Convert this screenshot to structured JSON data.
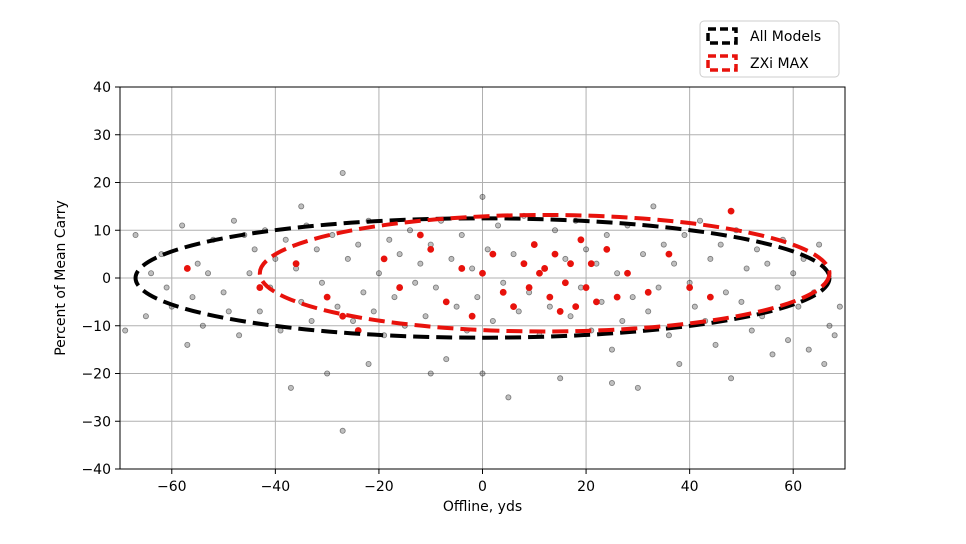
{
  "chart_data": {
    "type": "scatter",
    "xlabel": "Offline, yds",
    "ylabel": "Percent of Mean Carry",
    "xlim": [
      -70,
      70
    ],
    "ylim": [
      -40,
      40
    ],
    "xticks": [
      -60,
      -40,
      -20,
      0,
      20,
      40,
      60
    ],
    "yticks": [
      -40,
      -30,
      -20,
      -10,
      0,
      10,
      20,
      30,
      40
    ],
    "grid": true,
    "legend_position": "top-right, outside plot",
    "series": [
      {
        "name": "All Models",
        "color": "#000000",
        "marker_alpha": 0.25,
        "ellipse": {
          "cx": 0,
          "cy": 0,
          "rx": 67,
          "ry": 12.5
        },
        "points": [
          [
            -67,
            9
          ],
          [
            -65,
            -8
          ],
          [
            -62,
            5
          ],
          [
            -60,
            -6
          ],
          [
            -58,
            11
          ],
          [
            -57,
            -14
          ],
          [
            -55,
            3
          ],
          [
            -54,
            -10
          ],
          [
            -52,
            8
          ],
          [
            -50,
            -3
          ],
          [
            -48,
            12
          ],
          [
            -47,
            -12
          ],
          [
            -45,
            1
          ],
          [
            -44,
            6
          ],
          [
            -43,
            -7
          ],
          [
            -42,
            10
          ],
          [
            -41,
            -2
          ],
          [
            -40,
            4
          ],
          [
            -39,
            -11
          ],
          [
            -38,
            8
          ],
          [
            -37,
            -23
          ],
          [
            -36,
            2
          ],
          [
            -35,
            -5
          ],
          [
            -34,
            11
          ],
          [
            -33,
            -9
          ],
          [
            -32,
            6
          ],
          [
            -31,
            -1
          ],
          [
            -30,
            -20
          ],
          [
            -29,
            9
          ],
          [
            -28,
            -6
          ],
          [
            -27,
            22
          ],
          [
            -27,
            -32
          ],
          [
            -26,
            4
          ],
          [
            -25,
            -9
          ],
          [
            -24,
            7
          ],
          [
            -23,
            -3
          ],
          [
            -22,
            12
          ],
          [
            -21,
            -7
          ],
          [
            -20,
            1
          ],
          [
            -19,
            -12
          ],
          [
            -18,
            8
          ],
          [
            -17,
            -4
          ],
          [
            -16,
            5
          ],
          [
            -15,
            -10
          ],
          [
            -14,
            10
          ],
          [
            -13,
            -1
          ],
          [
            -12,
            3
          ],
          [
            -11,
            -8
          ],
          [
            -10,
            7
          ],
          [
            -9,
            -2
          ],
          [
            -8,
            12
          ],
          [
            -7,
            -17
          ],
          [
            -6,
            4
          ],
          [
            -5,
            -6
          ],
          [
            -4,
            9
          ],
          [
            -3,
            -11
          ],
          [
            -2,
            2
          ],
          [
            -1,
            -4
          ],
          [
            0,
            17
          ],
          [
            0,
            -20
          ],
          [
            1,
            6
          ],
          [
            2,
            -9
          ],
          [
            3,
            11
          ],
          [
            4,
            -1
          ],
          [
            5,
            -25
          ],
          [
            6,
            5
          ],
          [
            7,
            -7
          ],
          [
            8,
            13
          ],
          [
            9,
            -3
          ],
          [
            10,
            7
          ],
          [
            11,
            -12
          ],
          [
            12,
            2
          ],
          [
            13,
            -6
          ],
          [
            14,
            10
          ],
          [
            15,
            -21
          ],
          [
            16,
            4
          ],
          [
            17,
            -8
          ],
          [
            18,
            12
          ],
          [
            19,
            -2
          ],
          [
            20,
            6
          ],
          [
            21,
            -11
          ],
          [
            22,
            3
          ],
          [
            23,
            -5
          ],
          [
            24,
            9
          ],
          [
            25,
            -15
          ],
          [
            26,
            1
          ],
          [
            27,
            -9
          ],
          [
            28,
            11
          ],
          [
            29,
            -4
          ],
          [
            30,
            -23
          ],
          [
            31,
            5
          ],
          [
            32,
            -7
          ],
          [
            33,
            15
          ],
          [
            34,
            -2
          ],
          [
            35,
            7
          ],
          [
            36,
            -12
          ],
          [
            37,
            3
          ],
          [
            38,
            -18
          ],
          [
            39,
            9
          ],
          [
            40,
            -1
          ],
          [
            41,
            -6
          ],
          [
            42,
            12
          ],
          [
            43,
            -9
          ],
          [
            44,
            4
          ],
          [
            45,
            -14
          ],
          [
            46,
            7
          ],
          [
            47,
            -3
          ],
          [
            48,
            -21
          ],
          [
            49,
            10
          ],
          [
            50,
            -5
          ],
          [
            51,
            2
          ],
          [
            52,
            -11
          ],
          [
            53,
            6
          ],
          [
            54,
            -8
          ],
          [
            55,
            3
          ],
          [
            56,
            -16
          ],
          [
            57,
            -2
          ],
          [
            58,
            8
          ],
          [
            59,
            -13
          ],
          [
            60,
            1
          ],
          [
            61,
            -6
          ],
          [
            62,
            4
          ],
          [
            63,
            -15
          ],
          [
            64,
            -3
          ],
          [
            65,
            7
          ],
          [
            66,
            -18
          ],
          [
            67,
            -10
          ],
          [
            68,
            -12
          ],
          [
            69,
            -6
          ],
          [
            -69,
            -11
          ],
          [
            -64,
            1
          ],
          [
            -61,
            -2
          ],
          [
            -56,
            -4
          ],
          [
            -53,
            1
          ],
          [
            -49,
            -7
          ],
          [
            -46,
            9
          ],
          [
            -35,
            15
          ],
          [
            -22,
            -18
          ],
          [
            -10,
            -20
          ],
          [
            25,
            -22
          ]
        ]
      },
      {
        "name": "ZXi MAX",
        "color": "#e8120c",
        "marker_alpha": 1,
        "ellipse": {
          "cx": 12,
          "cy": 1,
          "rx": 55,
          "ry": 12.2
        },
        "points": [
          [
            -57,
            2
          ],
          [
            -43,
            -2
          ],
          [
            -36,
            3
          ],
          [
            -30,
            -4
          ],
          [
            -27,
            -8
          ],
          [
            -24,
            -11
          ],
          [
            -19,
            4
          ],
          [
            -16,
            -2
          ],
          [
            -12,
            9
          ],
          [
            -10,
            6
          ],
          [
            -7,
            -5
          ],
          [
            -4,
            2
          ],
          [
            -2,
            -8
          ],
          [
            0,
            1
          ],
          [
            2,
            5
          ],
          [
            4,
            -3
          ],
          [
            6,
            -6
          ],
          [
            8,
            3
          ],
          [
            9,
            -2
          ],
          [
            10,
            7
          ],
          [
            11,
            1
          ],
          [
            12,
            2
          ],
          [
            13,
            -4
          ],
          [
            14,
            5
          ],
          [
            15,
            -7
          ],
          [
            16,
            -1
          ],
          [
            17,
            3
          ],
          [
            18,
            -6
          ],
          [
            19,
            8
          ],
          [
            20,
            -2
          ],
          [
            21,
            3
          ],
          [
            22,
            -5
          ],
          [
            24,
            6
          ],
          [
            26,
            -4
          ],
          [
            28,
            1
          ],
          [
            32,
            -3
          ],
          [
            36,
            5
          ],
          [
            40,
            -2
          ],
          [
            44,
            -4
          ],
          [
            48,
            14
          ]
        ]
      }
    ]
  }
}
